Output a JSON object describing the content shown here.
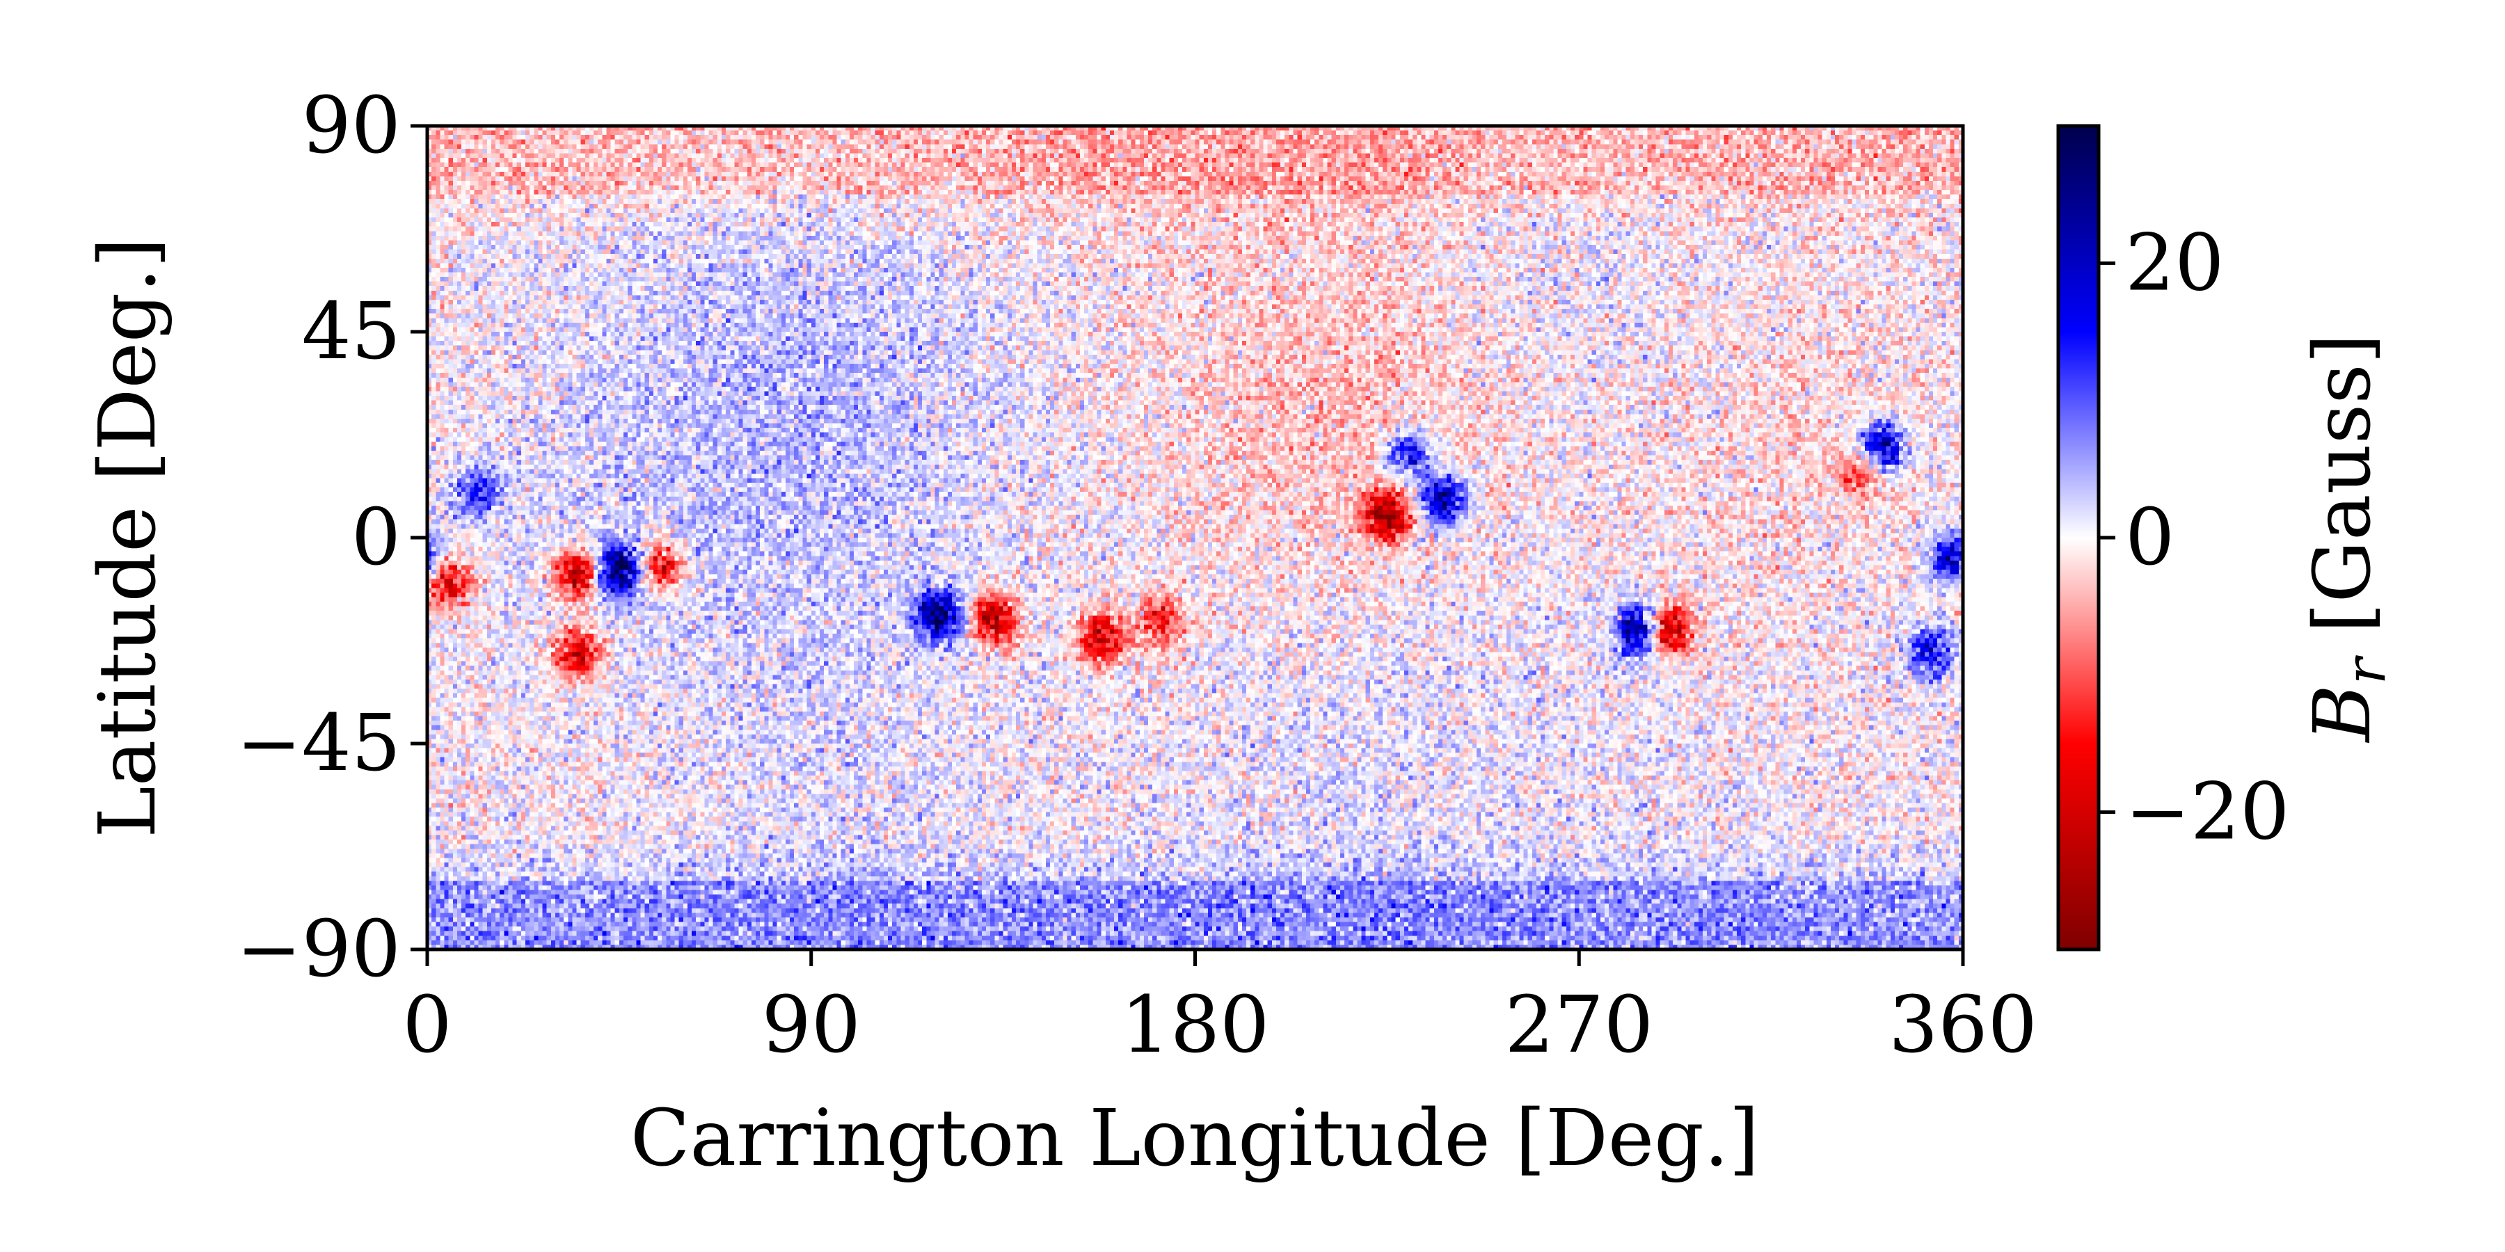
{
  "chart_data": {
    "type": "heatmap",
    "xlabel": "Carrington Longitude [Deg.]",
    "ylabel": "Latitude [Deg.]",
    "xlim": [
      0,
      360
    ],
    "ylim": [
      -90,
      90
    ],
    "xticks": [
      0,
      90,
      180,
      270,
      360
    ],
    "yticks": [
      90,
      45,
      0,
      -45,
      -90
    ],
    "xtick_labels": [
      "0",
      "90",
      "180",
      "270",
      "360"
    ],
    "ytick_labels": [
      "90",
      "45",
      "0",
      "−45",
      "−90"
    ],
    "grid": false,
    "colormap": "seismic_r",
    "colormap_colors": {
      "negative_extreme": "#7f0000",
      "negative": "#ff0000",
      "zero": "#ffffff",
      "positive": "#0000ff",
      "positive_extreme": "#00004c"
    },
    "colorbar": {
      "label": "B_r [Gauss]",
      "label_base": "B",
      "label_subscript": "r",
      "label_unit": "[Gauss]",
      "range": [
        -30,
        30
      ],
      "ticks": [
        20,
        0,
        -20
      ],
      "tick_labels": [
        "20",
        "0",
        "−20"
      ],
      "position": "right"
    },
    "polar_fields": [
      {
        "region": "north polar cap",
        "lat_range": [
          75,
          90
        ],
        "sign": "negative",
        "approx_value": -5
      },
      {
        "region": "south polar cap",
        "lat_range": [
          -90,
          -75
        ],
        "sign": "positive",
        "approx_value": 8
      }
    ],
    "active_regions": [
      {
        "lon": 5,
        "lat": -10,
        "sign": "negative",
        "approx_peak": -25
      },
      {
        "lon": 35,
        "lat": -8,
        "sign": "negative",
        "approx_peak": -28
      },
      {
        "lon": 35,
        "lat": -25,
        "sign": "negative",
        "approx_peak": -25
      },
      {
        "lon": 45,
        "lat": -7,
        "sign": "positive",
        "approx_peak": 30
      },
      {
        "lon": 55,
        "lat": -6,
        "sign": "negative",
        "approx_peak": -22
      },
      {
        "lon": 12,
        "lat": 10,
        "sign": "positive",
        "approx_peak": 15
      },
      {
        "lon": 120,
        "lat": -17,
        "sign": "positive",
        "approx_peak": 30
      },
      {
        "lon": 133,
        "lat": -18,
        "sign": "negative",
        "approx_peak": -28
      },
      {
        "lon": 158,
        "lat": -22,
        "sign": "negative",
        "approx_peak": -25
      },
      {
        "lon": 172,
        "lat": -18,
        "sign": "negative",
        "approx_peak": -18
      },
      {
        "lon": 225,
        "lat": 5,
        "sign": "negative",
        "approx_peak": -30
      },
      {
        "lon": 238,
        "lat": 8,
        "sign": "positive",
        "approx_peak": 28
      },
      {
        "lon": 230,
        "lat": 18,
        "sign": "positive",
        "approx_peak": 20
      },
      {
        "lon": 284,
        "lat": -20,
        "sign": "positive",
        "approx_peak": 30
      },
      {
        "lon": 291,
        "lat": -20,
        "sign": "negative",
        "approx_peak": -28
      },
      {
        "lon": 341,
        "lat": 20,
        "sign": "positive",
        "approx_peak": 25
      },
      {
        "lon": 336,
        "lat": 14,
        "sign": "negative",
        "approx_peak": -12
      },
      {
        "lon": 358,
        "lat": -5,
        "sign": "positive",
        "approx_peak": 22
      },
      {
        "lon": 352,
        "lat": -25,
        "sign": "positive",
        "approx_peak": 18
      }
    ]
  }
}
